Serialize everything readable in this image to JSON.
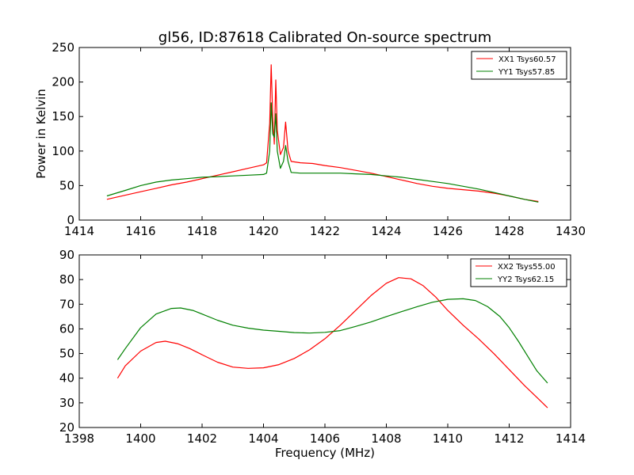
{
  "figure": {
    "title": "gl56, ID:87618 Calibrated On-source spectrum"
  },
  "colors": {
    "red": "#ff0000",
    "green": "#008000"
  },
  "chart_data": [
    {
      "type": "line",
      "title": "gl56, ID:87618 Calibrated On-source spectrum",
      "xlabel": "",
      "ylabel": "Power in Kelvin",
      "xlim": [
        1414,
        1430
      ],
      "ylim": [
        0,
        250
      ],
      "xticks": [
        "1414",
        "1416",
        "1418",
        "1420",
        "1422",
        "1424",
        "1426",
        "1428",
        "1430"
      ],
      "yticks": [
        "0",
        "50",
        "100",
        "150",
        "200",
        "250"
      ],
      "legend_position": "top-right",
      "series": [
        {
          "name": "XX1 Tsys60.57",
          "color": "#ff0000",
          "x": [
            1414.9,
            1415.5,
            1416.0,
            1416.5,
            1417.0,
            1417.5,
            1418.0,
            1418.5,
            1419.0,
            1419.5,
            1420.0,
            1420.1,
            1420.2,
            1420.25,
            1420.3,
            1420.35,
            1420.4,
            1420.45,
            1420.55,
            1420.65,
            1420.72,
            1420.8,
            1420.9,
            1421.2,
            1421.6,
            1422.0,
            1422.5,
            1423.0,
            1423.5,
            1424.0,
            1424.5,
            1425.0,
            1425.5,
            1426.0,
            1426.5,
            1427.0,
            1427.5,
            1428.0,
            1428.5,
            1428.95
          ],
          "y": [
            30,
            36,
            41,
            46,
            51,
            55,
            60,
            65,
            70,
            75,
            80,
            83,
            140,
            225,
            150,
            110,
            203,
            130,
            95,
            105,
            142,
            100,
            85,
            83,
            82,
            79,
            76,
            72,
            68,
            63,
            58,
            53,
            49,
            46,
            44,
            42,
            39,
            35,
            30,
            27
          ]
        },
        {
          "name": "YY1 Tsys57.85",
          "color": "#008000",
          "x": [
            1414.9,
            1415.5,
            1416.0,
            1416.5,
            1417.0,
            1417.5,
            1418.0,
            1418.5,
            1419.0,
            1419.5,
            1420.0,
            1420.1,
            1420.2,
            1420.25,
            1420.3,
            1420.35,
            1420.4,
            1420.45,
            1420.55,
            1420.65,
            1420.72,
            1420.8,
            1420.9,
            1421.2,
            1421.6,
            1422.0,
            1422.5,
            1423.0,
            1423.5,
            1424.0,
            1424.5,
            1425.0,
            1425.5,
            1426.0,
            1426.5,
            1427.0,
            1427.5,
            1428.0,
            1428.5,
            1428.95
          ],
          "y": [
            35,
            43,
            50,
            55,
            58,
            60,
            62,
            63,
            64,
            65,
            66,
            68,
            100,
            170,
            125,
            120,
            154,
            100,
            75,
            85,
            108,
            85,
            69,
            68,
            68,
            68,
            68,
            67,
            66,
            64,
            62,
            59,
            56,
            53,
            49,
            45,
            40,
            35,
            30,
            26
          ]
        }
      ]
    },
    {
      "type": "line",
      "title": "",
      "xlabel": "Frequency (MHz)",
      "ylabel": "",
      "xlim": [
        1398,
        1414
      ],
      "ylim": [
        20,
        90
      ],
      "xticks": [
        "1398",
        "1400",
        "1402",
        "1404",
        "1406",
        "1408",
        "1410",
        "1412",
        "1414"
      ],
      "yticks": [
        "20",
        "30",
        "40",
        "50",
        "60",
        "70",
        "80",
        "90"
      ],
      "legend_position": "top-right",
      "series": [
        {
          "name": "XX2 Tsys55.00",
          "color": "#ff0000",
          "x": [
            1399.25,
            1399.5,
            1400.0,
            1400.5,
            1400.8,
            1401.2,
            1401.6,
            1402.0,
            1402.5,
            1403.0,
            1403.5,
            1404.0,
            1404.5,
            1405.0,
            1405.5,
            1406.0,
            1406.5,
            1407.0,
            1407.5,
            1408.0,
            1408.4,
            1408.8,
            1409.2,
            1409.6,
            1410.0,
            1410.5,
            1411.0,
            1411.5,
            1412.0,
            1412.5,
            1413.0,
            1413.25
          ],
          "y": [
            40,
            45,
            51,
            54.5,
            55,
            54,
            52,
            49.5,
            46.5,
            44.5,
            44,
            44.2,
            45.5,
            48,
            51.5,
            56,
            61.5,
            67.5,
            73.5,
            78.5,
            80.8,
            80.3,
            77.5,
            73,
            67.5,
            61.5,
            56,
            50,
            43.5,
            37,
            31,
            28
          ]
        },
        {
          "name": "YY2 Tsys62.15",
          "color": "#008000",
          "x": [
            1399.25,
            1399.5,
            1400.0,
            1400.5,
            1401.0,
            1401.3,
            1401.7,
            1402.0,
            1402.5,
            1403.0,
            1403.5,
            1404.0,
            1404.5,
            1405.0,
            1405.5,
            1406.0,
            1406.5,
            1407.0,
            1407.5,
            1408.0,
            1408.5,
            1409.0,
            1409.5,
            1410.0,
            1410.5,
            1410.9,
            1411.3,
            1411.7,
            1412.0,
            1412.3,
            1412.6,
            1412.9,
            1413.25
          ],
          "y": [
            47.5,
            52,
            60.5,
            66,
            68.3,
            68.5,
            67.5,
            66,
            63.5,
            61.5,
            60.3,
            59.5,
            59,
            58.5,
            58.3,
            58.6,
            59.3,
            61,
            62.8,
            65,
            67,
            69,
            70.8,
            72,
            72.2,
            71.5,
            69,
            65,
            60.5,
            55,
            49,
            43,
            38
          ]
        }
      ]
    }
  ]
}
